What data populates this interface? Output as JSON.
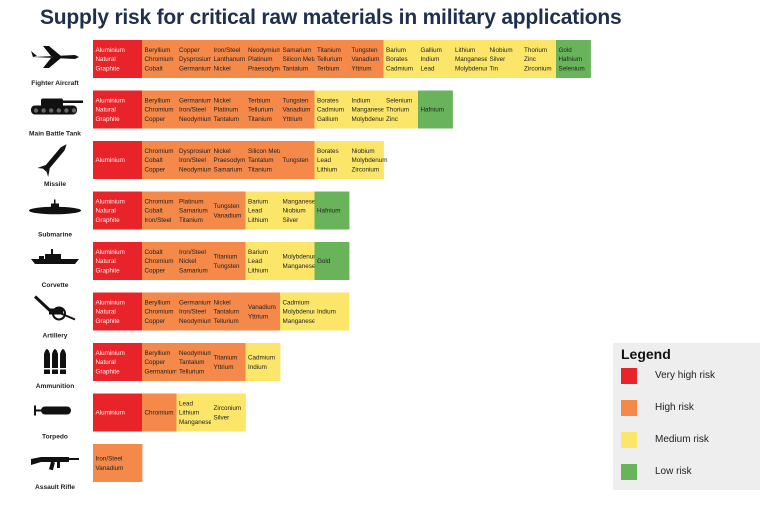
{
  "chart_data": {
    "type": "table",
    "title": "Supply risk for critical raw materials in military applications",
    "colors": {
      "very_high": "#e8242a",
      "high": "#f4894a",
      "medium": "#fce66a",
      "low": "#69b45a"
    },
    "legend": {
      "title": "Legend",
      "placement": "bottom-right",
      "items": [
        {
          "level": "very_high",
          "label": "Very high risk"
        },
        {
          "level": "high",
          "label": "High risk"
        },
        {
          "level": "medium",
          "label": "Medium risk"
        },
        {
          "level": "low",
          "label": "Low risk"
        }
      ]
    },
    "rows": [
      {
        "application": "Fighter Aircraft",
        "icon": "fighter-jet-icon",
        "groups": [
          {
            "level": "very_high",
            "materials": [
              "Aluminium",
              "Natural",
              "Graphite"
            ]
          },
          {
            "level": "high",
            "materials": [
              "Beryllium",
              "Chromium",
              "Cobalt"
            ]
          },
          {
            "level": "high",
            "materials": [
              "Copper",
              "Dysprosium",
              "Germanium"
            ]
          },
          {
            "level": "high",
            "materials": [
              "Iron/Steel",
              "Lanthanum",
              "Nickel"
            ]
          },
          {
            "level": "high",
            "materials": [
              "Neodymium",
              "Platinum",
              "Praesodymium"
            ]
          },
          {
            "level": "high",
            "materials": [
              "Samarium",
              "Silicon Metal",
              "Tantalum"
            ]
          },
          {
            "level": "high",
            "materials": [
              "Titanium",
              "Tellurium",
              "Terbium"
            ]
          },
          {
            "level": "high",
            "materials": [
              "Tungsten",
              "Vanadium",
              "Yttrium"
            ]
          },
          {
            "level": "medium",
            "materials": [
              "Barium",
              "Borates",
              "Cadmium"
            ]
          },
          {
            "level": "medium",
            "materials": [
              "Gallium",
              "Indium",
              "Lead"
            ]
          },
          {
            "level": "medium",
            "materials": [
              "Lithium",
              "Manganese",
              "Molybdenum"
            ]
          },
          {
            "level": "medium",
            "materials": [
              "Niobium",
              "Silver",
              "Tin"
            ]
          },
          {
            "level": "medium",
            "materials": [
              "Thorium",
              "Zinc",
              "Zirconium"
            ]
          },
          {
            "level": "low",
            "materials": [
              "Gold",
              "Hafnium",
              "Selenium"
            ]
          }
        ]
      },
      {
        "application": "Main Battle Tank",
        "icon": "tank-icon",
        "groups": [
          {
            "level": "very_high",
            "materials": [
              "Aluminium",
              "Natural",
              "Graphite"
            ]
          },
          {
            "level": "high",
            "materials": [
              "Beryllium",
              "Chromium",
              "Copper"
            ]
          },
          {
            "level": "high",
            "materials": [
              "Germanium",
              "Iron/Steel",
              "Neodymium"
            ]
          },
          {
            "level": "high",
            "materials": [
              "Nickel",
              "Platinum",
              "Tantalum"
            ]
          },
          {
            "level": "high",
            "materials": [
              "Terbium",
              "Tellurium",
              "Titanium"
            ]
          },
          {
            "level": "high",
            "materials": [
              "Tungsten",
              "Vanadium",
              "Yttrium"
            ]
          },
          {
            "level": "medium",
            "materials": [
              "Borates",
              "Cadmium",
              "Gallium"
            ]
          },
          {
            "level": "medium",
            "materials": [
              "Indium",
              "Manganese",
              "Molybdenum"
            ]
          },
          {
            "level": "medium",
            "materials": [
              "Selenium",
              "Thorium",
              "Zinc"
            ]
          },
          {
            "level": "low",
            "materials": [
              "Hafnium"
            ]
          }
        ]
      },
      {
        "application": "Missile",
        "icon": "missile-icon",
        "groups": [
          {
            "level": "very_high",
            "materials": [
              "Aluminium"
            ]
          },
          {
            "level": "high",
            "materials": [
              "Chromium",
              "Cobalt",
              "Copper"
            ]
          },
          {
            "level": "high",
            "materials": [
              "Dysprosium",
              "Iron/Steel",
              "Neodymium"
            ]
          },
          {
            "level": "high",
            "materials": [
              "Nickel",
              "Praesodymium",
              "Samarium"
            ]
          },
          {
            "level": "high",
            "materials": [
              "Silicon Metal",
              "Tantalum",
              "Titanium"
            ]
          },
          {
            "level": "high",
            "materials": [
              "Tungsten"
            ]
          },
          {
            "level": "medium",
            "materials": [
              "Borates",
              "Lead",
              "Lithium"
            ]
          },
          {
            "level": "medium",
            "materials": [
              "Niobium",
              "Molybdenum",
              "Zirconium"
            ]
          }
        ]
      },
      {
        "application": "Submarine",
        "icon": "submarine-icon",
        "groups": [
          {
            "level": "very_high",
            "materials": [
              "Aluminium",
              "Natural",
              "Graphite"
            ]
          },
          {
            "level": "high",
            "materials": [
              "Chromium",
              "Cobalt",
              "Iron/Steel"
            ]
          },
          {
            "level": "high",
            "materials": [
              "Platinum",
              "Samarium",
              "Titanium"
            ]
          },
          {
            "level": "high",
            "materials": [
              "Tungsten",
              "Vanadium"
            ]
          },
          {
            "level": "medium",
            "materials": [
              "Barium",
              "Lead",
              "Lithium"
            ]
          },
          {
            "level": "medium",
            "materials": [
              "Manganese",
              "Niobium",
              "Silver"
            ]
          },
          {
            "level": "low",
            "materials": [
              "Hafnium"
            ]
          }
        ]
      },
      {
        "application": "Corvette",
        "icon": "corvette-icon",
        "groups": [
          {
            "level": "very_high",
            "materials": [
              "Aluminium",
              "Natural",
              "Graphite"
            ]
          },
          {
            "level": "high",
            "materials": [
              "Cobalt",
              "Chromium",
              "Copper"
            ]
          },
          {
            "level": "high",
            "materials": [
              "Iron/Steel",
              "Nickel",
              "Samarium"
            ]
          },
          {
            "level": "high",
            "materials": [
              "Titanium",
              "Tungsten"
            ]
          },
          {
            "level": "medium",
            "materials": [
              "Barium",
              "Lead",
              "Lithium"
            ]
          },
          {
            "level": "medium",
            "materials": [
              "Molybdenum",
              "Manganese"
            ]
          },
          {
            "level": "low",
            "materials": [
              "Gold"
            ]
          }
        ]
      },
      {
        "application": "Artillery",
        "icon": "artillery-icon",
        "groups": [
          {
            "level": "very_high",
            "materials": [
              "Aluminium",
              "Natural",
              "Graphite"
            ]
          },
          {
            "level": "high",
            "materials": [
              "Beryllium",
              "Chromium",
              "Copper"
            ]
          },
          {
            "level": "high",
            "materials": [
              "Germanium",
              "Iron/Steel",
              "Neodymium"
            ]
          },
          {
            "level": "high",
            "materials": [
              "Nickel",
              "Tantalum",
              "Tellurium"
            ]
          },
          {
            "level": "high",
            "materials": [
              "Vanadium",
              "Yttrium"
            ]
          },
          {
            "level": "medium",
            "materials": [
              "Cadmium",
              "Molybdenum",
              "Manganese"
            ]
          },
          {
            "level": "medium",
            "materials": [
              "Indium"
            ]
          }
        ]
      },
      {
        "application": "Ammunition",
        "icon": "ammunition-icon",
        "groups": [
          {
            "level": "very_high",
            "materials": [
              "Aluminium",
              "Natural",
              "Graphite"
            ]
          },
          {
            "level": "high",
            "materials": [
              "Beryllium",
              "Copper",
              "Germanium"
            ]
          },
          {
            "level": "high",
            "materials": [
              "Neodymium",
              "Tantalum",
              "Tellurium"
            ]
          },
          {
            "level": "high",
            "materials": [
              "Titanium",
              "Yttrium"
            ]
          },
          {
            "level": "medium",
            "materials": [
              "Cadmium",
              "Indium"
            ]
          }
        ]
      },
      {
        "application": "Torpedo",
        "icon": "torpedo-icon",
        "groups": [
          {
            "level": "very_high",
            "materials": [
              "Aluminium"
            ]
          },
          {
            "level": "high",
            "materials": [
              "Chromium"
            ]
          },
          {
            "level": "medium",
            "materials": [
              "Lead",
              "Lithium",
              "Manganese"
            ]
          },
          {
            "level": "medium",
            "materials": [
              "Zirconium",
              "Silver"
            ]
          }
        ]
      },
      {
        "application": "Assault Rifle",
        "icon": "assault-rifle-icon",
        "groups": [
          {
            "level": "high",
            "materials": [
              "Iron/Steel",
              "Vanadium"
            ]
          }
        ]
      }
    ]
  }
}
